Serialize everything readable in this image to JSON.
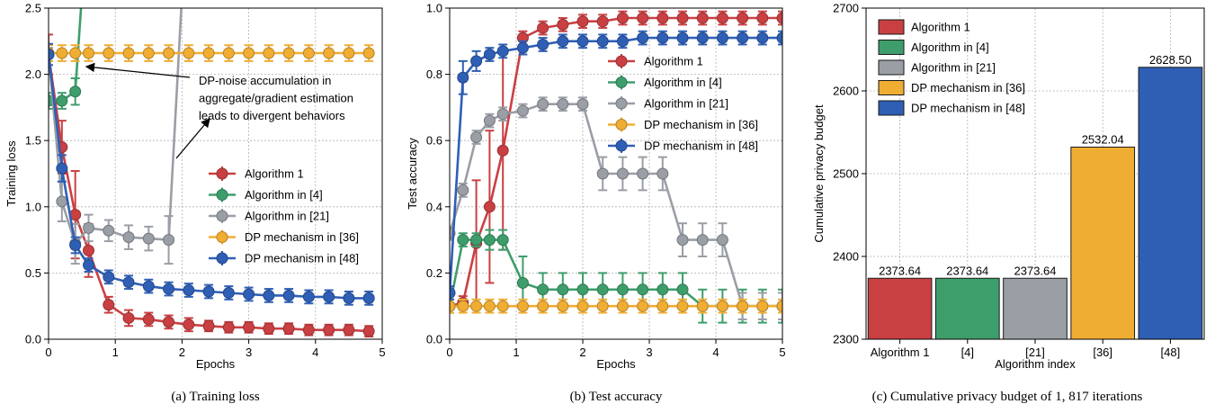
{
  "colors": {
    "alg1": "#c94043",
    "alg4": "#3e9e6b",
    "alg21": "#9a9ea5",
    "dp36": "#f0ad33",
    "dp48": "#2f5fb5"
  },
  "chart_data": [
    {
      "id": "a",
      "type": "line",
      "caption": "(a) Training loss",
      "xlabel": "Epochs",
      "ylabel": "Training loss",
      "xlim": [
        0,
        5
      ],
      "ylim": [
        0,
        2.5
      ],
      "xticks": [
        "0",
        "1",
        "2",
        "3",
        "4",
        "5"
      ],
      "yticks": [
        "0.0",
        "0.5",
        "1.0",
        "1.5",
        "2.0",
        "2.5"
      ],
      "annotation": [
        "DP-noise accumulation in",
        "aggregate/gradient estimation",
        "leads to divergent behaviors"
      ],
      "legend_position": "center-right",
      "series": [
        {
          "name": "Algorithm 1",
          "color_key": "alg1",
          "x": [
            0,
            0.2,
            0.4,
            0.6,
            0.9,
            1.2,
            1.5,
            1.8,
            2.1,
            2.4,
            2.7,
            3.0,
            3.3,
            3.6,
            3.9,
            4.2,
            4.5,
            4.8
          ],
          "y": [
            2.15,
            1.45,
            0.94,
            0.67,
            0.26,
            0.16,
            0.15,
            0.13,
            0.11,
            0.1,
            0.09,
            0.09,
            0.08,
            0.08,
            0.07,
            0.07,
            0.07,
            0.06
          ],
          "err": [
            0.15,
            0.2,
            0.33,
            0.2,
            0.06,
            0.06,
            0.05,
            0.05,
            0.05,
            0.04,
            0.04,
            0.04,
            0.04,
            0.04,
            0.04,
            0.04,
            0.04,
            0.04
          ]
        },
        {
          "name": "Algorithm in [4]",
          "color_key": "alg4",
          "x": [
            0,
            0.2,
            0.4,
            0.5
          ],
          "y": [
            1.8,
            1.8,
            1.87,
            2.6
          ],
          "err": [
            0.06,
            0.06,
            0.1,
            0
          ]
        },
        {
          "name": "Algorithm in [21]",
          "color_key": "alg21",
          "x": [
            0,
            0.2,
            0.4,
            0.6,
            0.9,
            1.2,
            1.5,
            1.8,
            2.0
          ],
          "y": [
            2.15,
            1.04,
            0.72,
            0.84,
            0.82,
            0.77,
            0.76,
            0.75,
            2.6
          ],
          "err": [
            0.05,
            0.15,
            0.15,
            0.1,
            0.08,
            0.09,
            0.09,
            0.18,
            0
          ]
        },
        {
          "name": "DP mechanism in [36]",
          "color_key": "dp36",
          "x": [
            0,
            0.2,
            0.4,
            0.6,
            0.9,
            1.2,
            1.5,
            1.8,
            2.1,
            2.4,
            2.7,
            3.0,
            3.3,
            3.6,
            3.9,
            4.2,
            4.5,
            4.8
          ],
          "y": [
            2.16,
            2.16,
            2.16,
            2.16,
            2.16,
            2.16,
            2.16,
            2.16,
            2.16,
            2.16,
            2.16,
            2.16,
            2.16,
            2.16,
            2.16,
            2.16,
            2.16,
            2.16
          ],
          "err": [
            0.06,
            0.06,
            0.06,
            0.06,
            0.06,
            0.06,
            0.06,
            0.06,
            0.06,
            0.06,
            0.06,
            0.06,
            0.06,
            0.06,
            0.06,
            0.06,
            0.06,
            0.06
          ]
        },
        {
          "name": "DP mechanism in [48]",
          "color_key": "dp48",
          "x": [
            0,
            0.2,
            0.4,
            0.6,
            0.9,
            1.2,
            1.5,
            1.8,
            2.1,
            2.4,
            2.7,
            3.0,
            3.3,
            3.6,
            3.9,
            4.2,
            4.5,
            4.8
          ],
          "y": [
            2.15,
            1.29,
            0.71,
            0.56,
            0.47,
            0.43,
            0.4,
            0.38,
            0.37,
            0.36,
            0.35,
            0.34,
            0.33,
            0.33,
            0.32,
            0.32,
            0.31,
            0.31
          ],
          "err": [
            0.08,
            0.1,
            0.06,
            0.05,
            0.05,
            0.05,
            0.05,
            0.05,
            0.05,
            0.05,
            0.05,
            0.05,
            0.05,
            0.05,
            0.05,
            0.05,
            0.05,
            0.05
          ]
        }
      ]
    },
    {
      "id": "b",
      "type": "line",
      "caption": "(b) Test accuracy",
      "xlabel": "Epochs",
      "ylabel": "Test accuracy",
      "xlim": [
        0,
        5
      ],
      "ylim": [
        0,
        1.0
      ],
      "xticks": [
        "0",
        "1",
        "2",
        "3",
        "4",
        "5"
      ],
      "yticks": [
        "0.0",
        "0.2",
        "0.4",
        "0.6",
        "0.8",
        "1.0"
      ],
      "legend_position": "center-right",
      "series": [
        {
          "name": "Algorithm 1",
          "color_key": "alg1",
          "x": [
            0,
            0.2,
            0.4,
            0.6,
            0.8,
            1.1,
            1.4,
            1.7,
            2.0,
            2.3,
            2.6,
            2.9,
            3.2,
            3.5,
            3.8,
            4.1,
            4.4,
            4.7,
            5.0
          ],
          "y": [
            0.1,
            0.11,
            0.29,
            0.4,
            0.57,
            0.91,
            0.94,
            0.95,
            0.96,
            0.96,
            0.97,
            0.97,
            0.97,
            0.97,
            0.97,
            0.97,
            0.97,
            0.97,
            0.97
          ],
          "err": [
            0.02,
            0.02,
            0.19,
            0.23,
            0.3,
            0.02,
            0.02,
            0.02,
            0.02,
            0.02,
            0.02,
            0.02,
            0.02,
            0.02,
            0.02,
            0.02,
            0.02,
            0.02,
            0.02
          ]
        },
        {
          "name": "Algorithm in [4]",
          "color_key": "alg4",
          "x": [
            0,
            0.2,
            0.4,
            0.6,
            0.8,
            1.1,
            1.4,
            1.7,
            2.0,
            2.3,
            2.6,
            2.9,
            3.2,
            3.5,
            3.8,
            4.1,
            4.4,
            4.7,
            5.0
          ],
          "y": [
            0.1,
            0.3,
            0.3,
            0.3,
            0.3,
            0.17,
            0.15,
            0.15,
            0.15,
            0.15,
            0.15,
            0.15,
            0.15,
            0.15,
            0.1,
            0.1,
            0.1,
            0.1,
            0.1
          ],
          "err": [
            0.02,
            0.02,
            0.02,
            0.03,
            0.03,
            0.08,
            0.05,
            0.05,
            0.05,
            0.05,
            0.05,
            0.05,
            0.05,
            0.05,
            0.05,
            0.05,
            0.05,
            0.05,
            0.05
          ]
        },
        {
          "name": "Algorithm in [21]",
          "color_key": "alg21",
          "x": [
            0,
            0.2,
            0.4,
            0.6,
            0.8,
            1.1,
            1.4,
            1.7,
            2.0,
            2.3,
            2.6,
            2.9,
            3.2,
            3.5,
            3.8,
            4.1,
            4.4,
            4.7,
            5.0
          ],
          "y": [
            0.32,
            0.45,
            0.61,
            0.66,
            0.68,
            0.69,
            0.71,
            0.71,
            0.71,
            0.5,
            0.5,
            0.5,
            0.5,
            0.3,
            0.3,
            0.3,
            0.1,
            0.1,
            0.1
          ],
          "err": [
            0.02,
            0.02,
            0.02,
            0.02,
            0.02,
            0.02,
            0.02,
            0.02,
            0.02,
            0.05,
            0.05,
            0.05,
            0.05,
            0.05,
            0.05,
            0.05,
            0.04,
            0.04,
            0.04
          ]
        },
        {
          "name": "DP mechanism in [36]",
          "color_key": "dp36",
          "x": [
            0,
            0.2,
            0.4,
            0.6,
            0.8,
            1.1,
            1.4,
            1.7,
            2.0,
            2.3,
            2.6,
            2.9,
            3.2,
            3.5,
            3.8,
            4.1,
            4.4,
            4.7,
            5.0
          ],
          "y": [
            0.1,
            0.1,
            0.1,
            0.1,
            0.1,
            0.1,
            0.1,
            0.1,
            0.1,
            0.1,
            0.1,
            0.1,
            0.1,
            0.1,
            0.1,
            0.1,
            0.1,
            0.1,
            0.1
          ],
          "err": [
            0.02,
            0.02,
            0.02,
            0.02,
            0.02,
            0.02,
            0.02,
            0.02,
            0.02,
            0.02,
            0.02,
            0.02,
            0.02,
            0.02,
            0.02,
            0.02,
            0.02,
            0.02,
            0.02
          ]
        },
        {
          "name": "DP mechanism in [48]",
          "color_key": "dp48",
          "x": [
            0,
            0.2,
            0.4,
            0.6,
            0.8,
            1.1,
            1.4,
            1.7,
            2.0,
            2.3,
            2.6,
            2.9,
            3.2,
            3.5,
            3.8,
            4.1,
            4.4,
            4.7,
            5.0
          ],
          "y": [
            0.14,
            0.79,
            0.84,
            0.86,
            0.87,
            0.88,
            0.89,
            0.9,
            0.9,
            0.9,
            0.9,
            0.91,
            0.91,
            0.91,
            0.91,
            0.91,
            0.91,
            0.91,
            0.91
          ],
          "err": [
            0.02,
            0.05,
            0.03,
            0.02,
            0.02,
            0.02,
            0.02,
            0.02,
            0.02,
            0.02,
            0.02,
            0.02,
            0.02,
            0.02,
            0.02,
            0.02,
            0.02,
            0.02,
            0.02
          ]
        }
      ]
    },
    {
      "id": "c",
      "type": "bar",
      "caption": "(c) Cumulative privacy budget of 1, 817 iterations",
      "xlabel": "Algorithm index",
      "ylabel": "Cumulative privacy budget",
      "ylim": [
        2300,
        2700
      ],
      "yticks": [
        "2300",
        "2400",
        "2500",
        "2600",
        "2700"
      ],
      "categories": [
        "Algorithm 1",
        "[4]",
        "[21]",
        "[36]",
        "[48]"
      ],
      "values": [
        2373.64,
        2373.64,
        2373.64,
        2532.04,
        2628.5
      ],
      "value_labels": [
        "2373.64",
        "2373.64",
        "2373.64",
        "2532.04",
        "2628.50"
      ],
      "legend_position": "top-left",
      "legend": [
        "Algorithm 1",
        "Algorithm in [4]",
        "Algorithm in [21]",
        "DP mechanism in [36]",
        "DP mechanism in [48]"
      ],
      "color_keys": [
        "alg1",
        "alg4",
        "alg21",
        "dp36",
        "dp48"
      ]
    }
  ]
}
